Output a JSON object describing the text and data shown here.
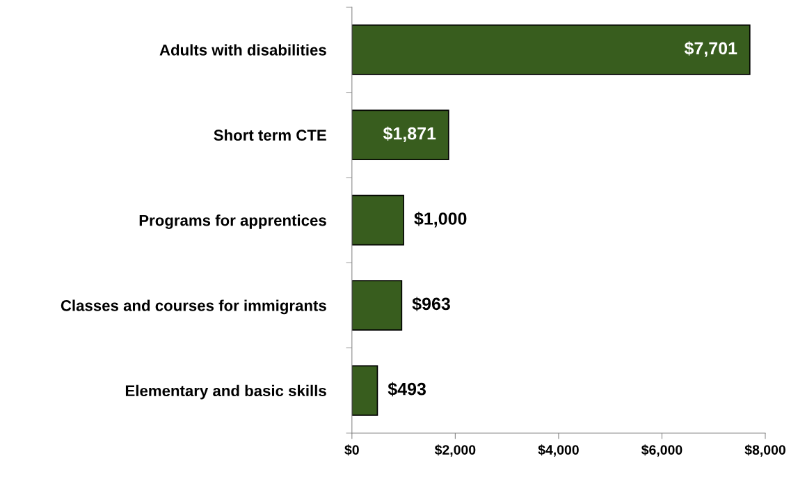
{
  "chart_data": {
    "type": "bar",
    "orientation": "horizontal",
    "categories": [
      "Adults with disabilities",
      "Short term CTE",
      "Programs for apprentices",
      "Classes and courses for immigrants",
      "Elementary and basic skills"
    ],
    "values": [
      7701,
      1871,
      1000,
      963,
      493
    ],
    "value_labels": [
      "$7,701",
      "$1,871",
      "$1,000",
      "$963",
      "$493"
    ],
    "color": "#385d1e",
    "xlim": [
      0,
      8000
    ],
    "xticks": [
      {
        "value": 0,
        "label": "$0"
      },
      {
        "value": 2000,
        "label": "$2,000"
      },
      {
        "value": 4000,
        "label": "$4,000"
      },
      {
        "value": 6000,
        "label": "$6,000"
      },
      {
        "value": 8000,
        "label": "$8,000"
      }
    ],
    "grid": false,
    "legend": false
  }
}
